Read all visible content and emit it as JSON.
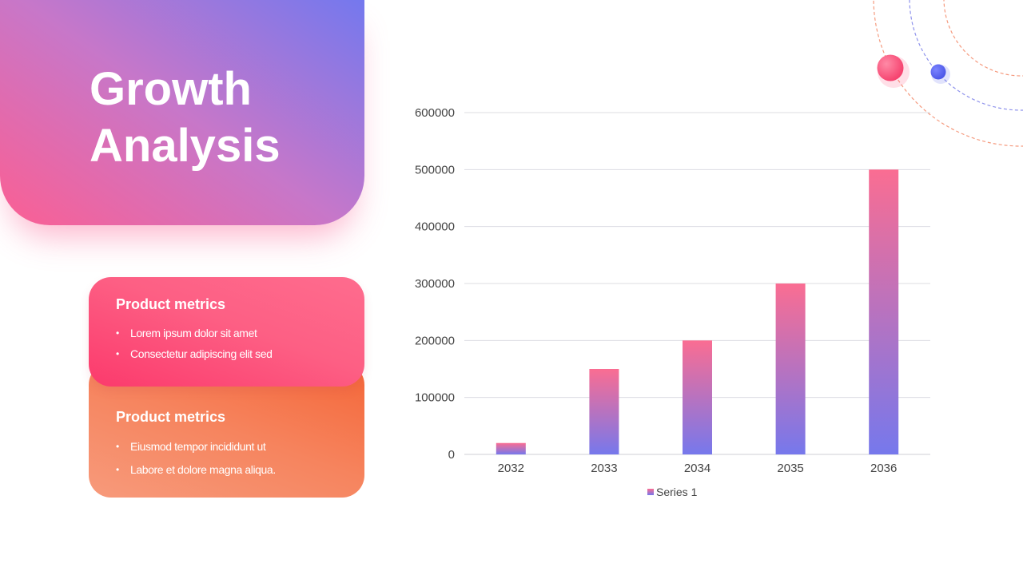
{
  "title": {
    "line1": "Growth",
    "line2": "Analysis"
  },
  "cards": [
    {
      "heading": "Product metrics",
      "bullets": [
        "Lorem ipsum dolor sit amet",
        "Consectetur adipiscing elit sed"
      ]
    },
    {
      "heading": "Product metrics",
      "bullets": [
        "Eiusmod tempor incididunt ut",
        "Labore et dolore magna aliqua."
      ]
    }
  ],
  "colors": {
    "bar_top": "#fa6d92",
    "bar_bottom": "#7678ec",
    "decor_pink": "#fd4f78",
    "decor_blue": "#5a63ee",
    "orbit_orange": "#f59a7e",
    "orbit_blue": "#8f93ec"
  },
  "chart_data": {
    "type": "bar",
    "categories": [
      "2032",
      "2033",
      "2034",
      "2035",
      "2036"
    ],
    "series": [
      {
        "name": "Series 1",
        "values": [
          20000,
          150000,
          200000,
          300000,
          500000
        ]
      }
    ],
    "yticks": [
      "0",
      "100000",
      "200000",
      "300000",
      "400000",
      "500000",
      "600000"
    ],
    "ylim": [
      0,
      600000
    ],
    "grid": true,
    "legend": "bottom"
  }
}
